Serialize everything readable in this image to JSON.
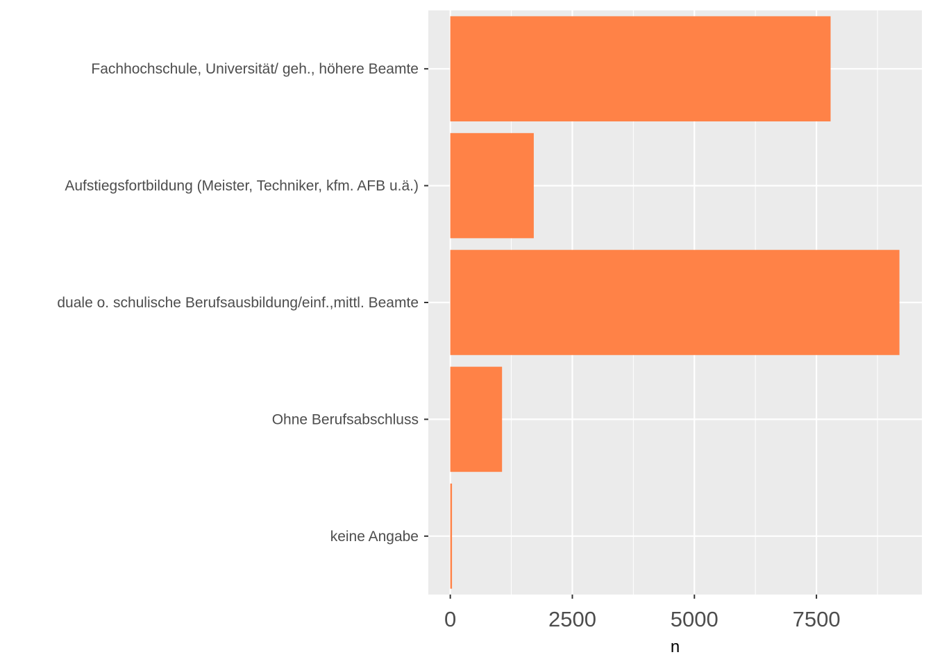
{
  "chart_data": {
    "type": "bar",
    "orientation": "horizontal",
    "categories": [
      "Fachhochschule, Universität/ geh., höhere Beamte",
      "Aufstiegsfortbildung (Meister, Techniker, kfm. AFB u.ä.)",
      "duale o. schulische Berufsausbildung/einf.,mittl. Beamte",
      "Ohne Berufsabschluss",
      "keine Angabe"
    ],
    "values": [
      7790,
      1710,
      9200,
      1060,
      35
    ],
    "xlabel": "n",
    "ylabel": "",
    "xlim": [
      -450,
      9660
    ],
    "xticks": [
      "0",
      "2500",
      "5000",
      "7500"
    ],
    "xtick_values": [
      0,
      2500,
      5000,
      7500
    ],
    "grid": true,
    "colors": {
      "bar": "#FF8247",
      "panel": "#EBEBEB",
      "grid": "#FFFFFF",
      "tick_text": "#4D4D4D",
      "tick_mark": "#333333"
    }
  }
}
